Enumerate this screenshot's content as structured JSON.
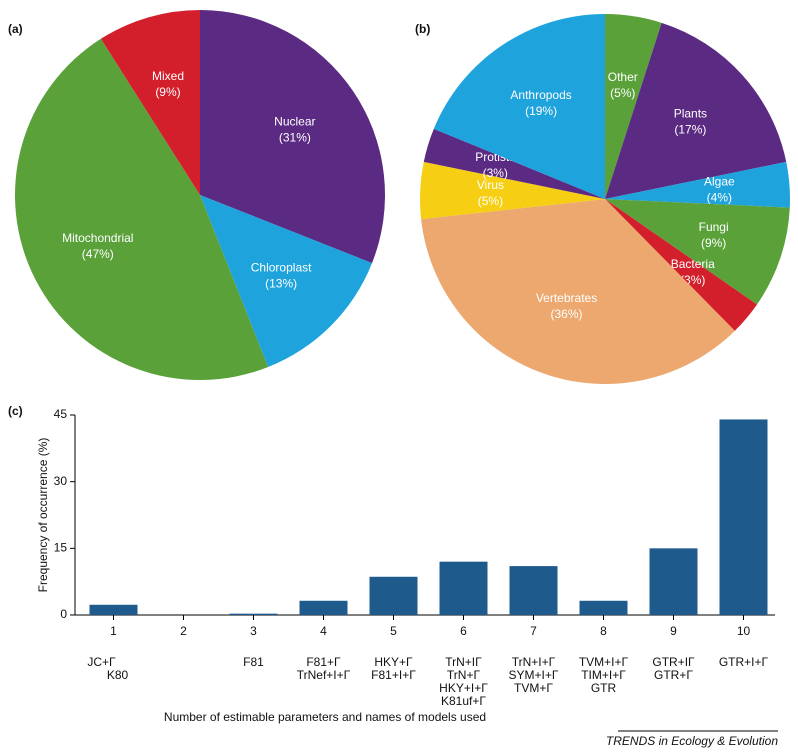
{
  "chart_data": [
    {
      "type": "pie",
      "panel": "(a)",
      "categories": [
        "Nuclear",
        "Chloroplast",
        "Mitochondrial",
        "Mixed"
      ],
      "values": [
        31,
        13,
        47,
        9
      ],
      "value_labels": [
        "(31%)",
        "(13%)",
        "(47%)",
        "(9%)"
      ],
      "colors": [
        "#5b2a82",
        "#1ea3dc",
        "#5aa13a",
        "#d31f2b"
      ]
    },
    {
      "type": "pie",
      "panel": "(b)",
      "categories": [
        "Other",
        "Plants",
        "Algae",
        "Fungi",
        "Bacteria",
        "Vertebrates",
        "Virus",
        "Protists",
        "Anthropods"
      ],
      "values": [
        5,
        17,
        4,
        9,
        3,
        36,
        5,
        3,
        19
      ],
      "value_labels": [
        "(5%)",
        "(17%)",
        "(4%)",
        "(9%)",
        "(3%)",
        "(36%)",
        "(5%)",
        "(3%)",
        "(19%)"
      ],
      "colors": [
        "#5aa13a",
        "#5b2a82",
        "#1ea3dc",
        "#5aa13a",
        "#d31f2b",
        "#eca86e",
        "#f6cf14",
        "#5b2a82",
        "#1ea3dc"
      ]
    },
    {
      "type": "bar",
      "panel": "(c)",
      "categories": [
        "1",
        "2",
        "3",
        "4",
        "5",
        "6",
        "7",
        "8",
        "9",
        "10"
      ],
      "values": [
        2.3,
        0,
        0.3,
        3.2,
        8.6,
        12,
        11,
        3.2,
        15,
        44
      ],
      "model_names": [
        [
          "JC+Γ",
          "K80"
        ],
        null,
        [
          "F81"
        ],
        [
          "F81+Γ",
          "TrNef+I+Γ"
        ],
        [
          "HKY+Γ",
          "F81+I+Γ"
        ],
        [
          "TrN+IΓ",
          "TrN+Γ",
          "HKY+I+Γ",
          "K81uf+Γ"
        ],
        [
          "TrN+I+Γ",
          "SYM+I+Γ",
          "TVM+Γ"
        ],
        [
          "TVM+I+Γ",
          "TIM+I+Γ",
          "GTR"
        ],
        [
          "GTR+IΓ",
          "GTR+Γ"
        ],
        [
          "GTR+I+Γ"
        ]
      ],
      "color": "#1f5a8c",
      "ylim": [
        0,
        45
      ],
      "yticks": [
        0,
        15,
        30,
        45
      ],
      "x_label": "Number of estimable parameters and names of models used",
      "y_label": "Frequency of occurrence (%)"
    }
  ],
  "source": "TRENDS in Ecology & Evolution"
}
